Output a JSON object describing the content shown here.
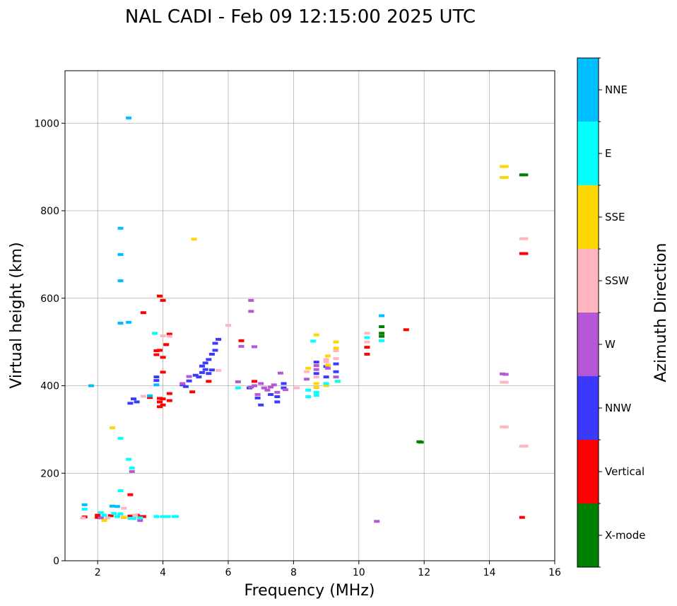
{
  "chart_data": {
    "type": "scatter",
    "title": "NAL CADI - Feb 09 12:15:00 2025 UTC",
    "xlabel": "Frequency (MHz)",
    "ylabel": "Virtual height (km)",
    "xlim": [
      1,
      16
    ],
    "ylim": [
      0,
      1120
    ],
    "xticks": [
      2,
      4,
      6,
      8,
      10,
      12,
      14,
      16
    ],
    "yticks": [
      0,
      200,
      400,
      600,
      800,
      1000
    ],
    "grid": true,
    "colorbar": {
      "label": "Azimuth Direction",
      "categories": [
        {
          "name": "X-mode",
          "color": "#008000"
        },
        {
          "name": "Vertical",
          "color": "#ff0000"
        },
        {
          "name": "NNW",
          "color": "#3a3aff"
        },
        {
          "name": "W",
          "color": "#b557d6"
        },
        {
          "name": "SSW",
          "color": "#ffb6c1"
        },
        {
          "name": "SSE",
          "color": "#ffd700"
        },
        {
          "name": "E",
          "color": "#00ffff"
        },
        {
          "name": "NNE",
          "color": "#00bfff"
        }
      ]
    },
    "series": [
      {
        "name": "X-mode",
        "points": [
          [
            10.7,
            535
          ],
          [
            10.7,
            520
          ],
          [
            10.7,
            513
          ],
          [
            11.85,
            272
          ],
          [
            11.9,
            271
          ],
          [
            15.0,
            882
          ],
          [
            15.1,
            882
          ]
        ]
      },
      {
        "name": "Vertical",
        "points": [
          [
            1.6,
            100
          ],
          [
            2.0,
            104
          ],
          [
            2.0,
            99
          ],
          [
            2.4,
            103
          ],
          [
            2.6,
            101
          ],
          [
            2.8,
            99
          ],
          [
            3.0,
            102
          ],
          [
            3.0,
            151
          ],
          [
            3.2,
            104
          ],
          [
            3.3,
            101
          ],
          [
            3.4,
            101
          ],
          [
            3.4,
            567
          ],
          [
            3.6,
            373
          ],
          [
            3.8,
            480
          ],
          [
            3.8,
            471
          ],
          [
            3.9,
            605
          ],
          [
            3.9,
            481
          ],
          [
            3.9,
            363
          ],
          [
            3.9,
            371
          ],
          [
            3.9,
            352
          ],
          [
            4.0,
            595
          ],
          [
            4.0,
            465
          ],
          [
            4.0,
            431
          ],
          [
            4.0,
            370
          ],
          [
            4.0,
            356
          ],
          [
            4.1,
            494
          ],
          [
            4.2,
            518
          ],
          [
            4.2,
            382
          ],
          [
            4.2,
            366
          ],
          [
            4.9,
            386
          ],
          [
            5.4,
            410
          ],
          [
            6.4,
            503
          ],
          [
            6.8,
            410
          ],
          [
            10.25,
            488
          ],
          [
            10.25,
            472
          ],
          [
            11.45,
            528
          ],
          [
            15.0,
            702
          ],
          [
            15.1,
            702
          ],
          [
            15.0,
            99
          ]
        ]
      },
      {
        "name": "NNW",
        "points": [
          [
            3.0,
            360
          ],
          [
            3.1,
            370
          ],
          [
            3.2,
            363
          ],
          [
            3.8,
            412
          ],
          [
            3.8,
            420
          ],
          [
            4.6,
            402
          ],
          [
            4.7,
            398
          ],
          [
            4.8,
            411
          ],
          [
            5.0,
            424
          ],
          [
            5.1,
            420
          ],
          [
            5.2,
            430
          ],
          [
            5.2,
            445
          ],
          [
            5.3,
            437
          ],
          [
            5.3,
            452
          ],
          [
            5.4,
            460
          ],
          [
            5.4,
            428
          ],
          [
            5.5,
            472
          ],
          [
            5.5,
            436
          ],
          [
            5.6,
            481
          ],
          [
            5.6,
            497
          ],
          [
            5.7,
            506
          ],
          [
            6.65,
            395
          ],
          [
            6.9,
            372
          ],
          [
            7.0,
            356
          ],
          [
            7.3,
            380
          ],
          [
            7.5,
            375
          ],
          [
            7.5,
            363
          ],
          [
            7.7,
            395
          ],
          [
            7.7,
            405
          ],
          [
            8.7,
            454
          ],
          [
            8.7,
            428
          ],
          [
            9.0,
            444
          ],
          [
            9.0,
            420
          ],
          [
            9.3,
            450
          ],
          [
            9.3,
            432
          ]
        ]
      },
      {
        "name": "W",
        "points": [
          [
            2.1,
            98
          ],
          [
            3.05,
            204
          ],
          [
            3.3,
            92
          ],
          [
            4.6,
            405
          ],
          [
            4.8,
            421
          ],
          [
            6.3,
            409
          ],
          [
            6.4,
            490
          ],
          [
            6.7,
            595
          ],
          [
            6.7,
            570
          ],
          [
            6.8,
            489
          ],
          [
            6.7,
            397
          ],
          [
            6.8,
            400
          ],
          [
            6.9,
            380
          ],
          [
            7.0,
            405
          ],
          [
            7.1,
            395
          ],
          [
            7.2,
            390
          ],
          [
            7.3,
            397
          ],
          [
            7.4,
            402
          ],
          [
            7.5,
            385
          ],
          [
            7.6,
            429
          ],
          [
            7.75,
            391
          ],
          [
            8.4,
            415
          ],
          [
            8.7,
            446
          ],
          [
            8.7,
            437
          ],
          [
            9.05,
            440
          ],
          [
            9.3,
            420
          ],
          [
            10.55,
            90
          ],
          [
            14.4,
            427
          ],
          [
            14.5,
            426
          ]
        ]
      },
      {
        "name": "SSW",
        "points": [
          [
            1.55,
            98
          ],
          [
            2.3,
            98
          ],
          [
            2.8,
            120
          ],
          [
            3.15,
            104
          ],
          [
            3.4,
            376
          ],
          [
            4.0,
            514
          ],
          [
            4.2,
            513
          ],
          [
            5.7,
            435
          ],
          [
            6.0,
            538
          ],
          [
            8.1,
            395
          ],
          [
            8.4,
            432
          ],
          [
            8.7,
            420
          ],
          [
            9.0,
            460
          ],
          [
            9.0,
            455
          ],
          [
            9.3,
            480
          ],
          [
            9.3,
            462
          ],
          [
            10.25,
            520
          ],
          [
            10.25,
            500
          ],
          [
            14.4,
            306
          ],
          [
            14.5,
            306
          ],
          [
            14.4,
            408
          ],
          [
            14.5,
            408
          ],
          [
            15.0,
            262
          ],
          [
            15.1,
            262
          ],
          [
            15.0,
            736
          ],
          [
            15.1,
            736
          ]
        ]
      },
      {
        "name": "SSE",
        "points": [
          [
            2.2,
            92
          ],
          [
            2.45,
            304
          ],
          [
            2.8,
            99
          ],
          [
            4.95,
            735
          ],
          [
            8.45,
            440
          ],
          [
            8.7,
            516
          ],
          [
            8.7,
            405
          ],
          [
            8.7,
            396
          ],
          [
            9.0,
            400
          ],
          [
            9.05,
            468
          ],
          [
            9.05,
            447
          ],
          [
            9.3,
            500
          ],
          [
            9.3,
            486
          ],
          [
            9.35,
            410
          ],
          [
            14.4,
            901
          ],
          [
            14.5,
            901
          ],
          [
            14.4,
            876
          ],
          [
            14.5,
            876
          ]
        ]
      },
      {
        "name": "E",
        "points": [
          [
            1.6,
            118
          ],
          [
            2.1,
            110
          ],
          [
            2.2,
            104
          ],
          [
            2.5,
            108
          ],
          [
            2.6,
            101
          ],
          [
            2.7,
            107
          ],
          [
            3.0,
            97
          ],
          [
            3.1,
            97
          ],
          [
            3.3,
            98
          ],
          [
            3.8,
            101
          ],
          [
            4.0,
            101
          ],
          [
            4.15,
            101
          ],
          [
            4.35,
            101
          ],
          [
            4.4,
            101
          ],
          [
            2.7,
            160
          ],
          [
            2.7,
            280
          ],
          [
            2.95,
            232
          ],
          [
            3.05,
            212
          ],
          [
            3.75,
            520
          ],
          [
            6.3,
            395
          ],
          [
            8.45,
            390
          ],
          [
            8.45,
            375
          ],
          [
            8.6,
            502
          ],
          [
            8.7,
            385
          ],
          [
            8.7,
            378
          ],
          [
            9.0,
            405
          ],
          [
            9.35,
            410
          ],
          [
            10.25,
            510
          ],
          [
            10.7,
            503
          ]
        ]
      },
      {
        "name": "NNE",
        "points": [
          [
            1.6,
            128
          ],
          [
            1.8,
            400
          ],
          [
            2.45,
            125
          ],
          [
            2.6,
            124
          ],
          [
            2.7,
            760
          ],
          [
            2.7,
            700
          ],
          [
            2.7,
            640
          ],
          [
            2.7,
            543
          ],
          [
            2.95,
            1012
          ],
          [
            2.95,
            545
          ],
          [
            3.6,
            377
          ],
          [
            3.8,
            402
          ],
          [
            10.7,
            560
          ]
        ]
      }
    ]
  }
}
